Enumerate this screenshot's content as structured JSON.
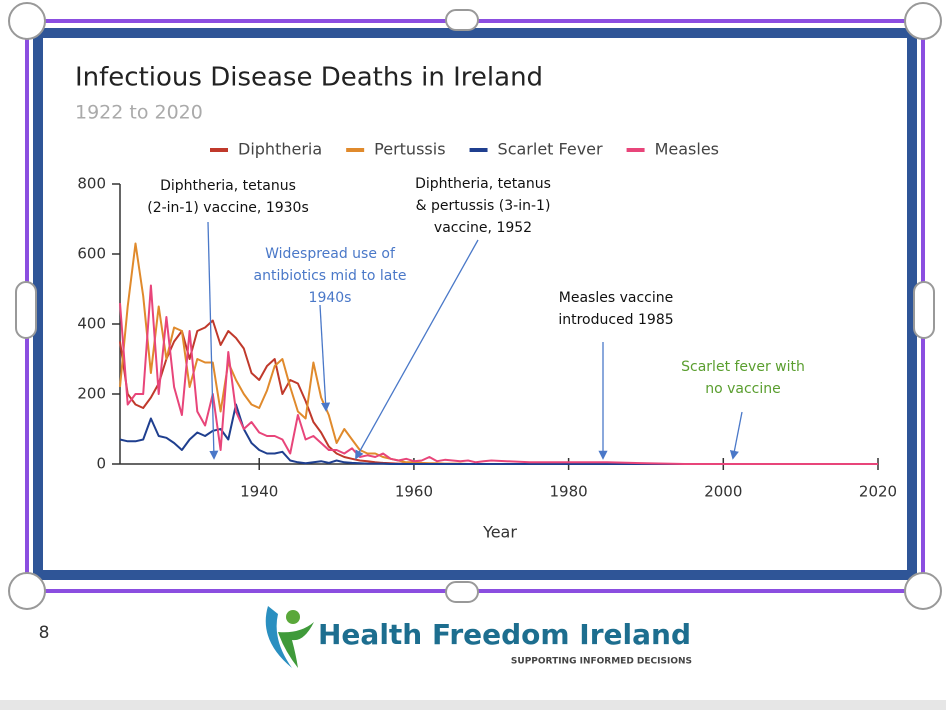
{
  "chart_data": {
    "type": "line",
    "title": "Infectious Disease Deaths in Ireland",
    "subtitle": "1922 to 2020",
    "x_label": "Year",
    "x": [
      1922,
      1923,
      1924,
      1925,
      1926,
      1927,
      1928,
      1929,
      1930,
      1931,
      1932,
      1933,
      1934,
      1935,
      1936,
      1937,
      1938,
      1939,
      1940,
      1941,
      1942,
      1943,
      1944,
      1945,
      1946,
      1947,
      1948,
      1949,
      1950,
      1951,
      1952,
      1953,
      1954,
      1955,
      1956,
      1957,
      1958,
      1959,
      1960,
      1961,
      1962,
      1963,
      1964,
      1965,
      1966,
      1967,
      1968,
      1969,
      1970,
      1975,
      1980,
      1985,
      1990,
      1995,
      2000,
      2005,
      2010,
      2015,
      2020
    ],
    "series": [
      {
        "name": "Diphtheria",
        "color": "#c0392b",
        "values": [
          350,
          200,
          170,
          160,
          190,
          230,
          300,
          350,
          380,
          300,
          380,
          390,
          410,
          340,
          380,
          360,
          330,
          260,
          240,
          280,
          300,
          200,
          240,
          230,
          180,
          120,
          90,
          50,
          30,
          20,
          15,
          10,
          8,
          5,
          3,
          2,
          1,
          1,
          1,
          0,
          0,
          0,
          0,
          0,
          0,
          0,
          0,
          0,
          0,
          0,
          0,
          0,
          0,
          0,
          0,
          0,
          0,
          0,
          0
        ]
      },
      {
        "name": "Pertussis",
        "color": "#e08a2c",
        "values": [
          220,
          450,
          630,
          480,
          260,
          450,
          300,
          390,
          380,
          220,
          300,
          290,
          290,
          150,
          290,
          240,
          200,
          170,
          160,
          210,
          280,
          300,
          220,
          150,
          130,
          290,
          190,
          140,
          60,
          100,
          70,
          40,
          30,
          30,
          20,
          15,
          10,
          5,
          5,
          3,
          2,
          2,
          1,
          1,
          1,
          0,
          0,
          0,
          0,
          0,
          0,
          0,
          0,
          0,
          0,
          0,
          0,
          0,
          0
        ]
      },
      {
        "name": "Scarlet Fever",
        "color": "#1f3f8f",
        "values": [
          70,
          65,
          65,
          70,
          130,
          80,
          75,
          60,
          40,
          70,
          90,
          80,
          95,
          100,
          70,
          170,
          100,
          60,
          40,
          30,
          30,
          35,
          10,
          5,
          2,
          5,
          8,
          3,
          10,
          5,
          3,
          2,
          1,
          1,
          1,
          0,
          0,
          0,
          0,
          0,
          0,
          0,
          0,
          0,
          0,
          0,
          0,
          0,
          0,
          0,
          0,
          0,
          0,
          0,
          0,
          0,
          0,
          0,
          0
        ]
      },
      {
        "name": "Measles",
        "color": "#e8457a",
        "values": [
          460,
          170,
          200,
          200,
          510,
          200,
          420,
          220,
          140,
          380,
          150,
          110,
          200,
          40,
          320,
          150,
          100,
          120,
          90,
          80,
          80,
          70,
          30,
          140,
          70,
          80,
          60,
          40,
          40,
          30,
          45,
          20,
          25,
          20,
          30,
          15,
          10,
          15,
          8,
          10,
          20,
          8,
          12,
          10,
          8,
          10,
          5,
          8,
          10,
          5,
          5,
          5,
          2,
          0,
          0,
          0,
          0,
          0,
          0
        ]
      }
    ],
    "xlim": [
      1922,
      2020
    ],
    "ylim": [
      0,
      800
    ],
    "xticks": [
      1940,
      1960,
      1980,
      2000,
      2020
    ],
    "yticks": [
      0,
      200,
      400,
      600,
      800
    ],
    "grid": false,
    "legend": "top",
    "annotations": [
      {
        "lines": [
          "Diphtheria, tetanus",
          "(2-in-1) vaccine, 1930s"
        ],
        "color": "#111111"
      },
      {
        "lines": [
          "Widespread use of",
          "antibiotics mid to late",
          "1940s"
        ],
        "color": "#4a78c8"
      },
      {
        "lines": [
          "Diphtheria, tetanus",
          "& pertussis (3-in-1)",
          "vaccine, 1952"
        ],
        "color": "#111111"
      },
      {
        "lines": [
          "Measles vaccine",
          "introduced 1985"
        ],
        "color": "#111111"
      },
      {
        "lines": [
          "Scarlet fever with",
          "no vaccine"
        ],
        "color": "#5a9e2f"
      }
    ]
  },
  "page": {
    "number": "8",
    "logo": {
      "name": "Health Freedom Ireland",
      "tagline": "SUPPORTING INFORMED DECISIONS"
    }
  }
}
